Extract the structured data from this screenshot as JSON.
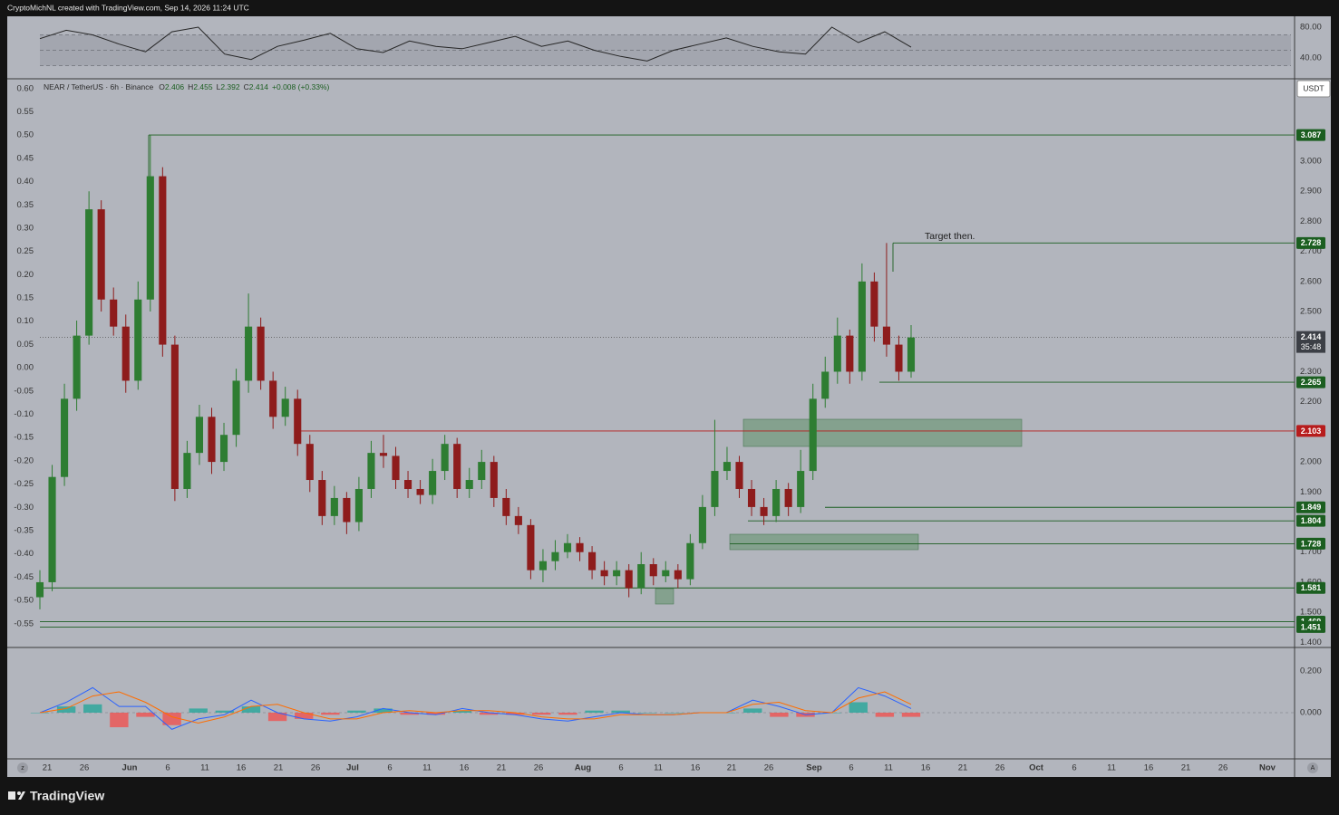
{
  "header": {
    "caption": "CryptoMichNL created with TradingView.com, Sep 14, 2026 11:24 UTC"
  },
  "footer": {
    "brand": "TradingView"
  },
  "chart_data": [
    {
      "type": "line",
      "series": [
        {
          "color": "#262626",
          "values": [
            65,
            76,
            70,
            58,
            48,
            74,
            80,
            45,
            38,
            55,
            63,
            72,
            52,
            47,
            62,
            55,
            52,
            60,
            68,
            55,
            62,
            50,
            42,
            36,
            50,
            58,
            66,
            55,
            48,
            45,
            80,
            60,
            74,
            54
          ]
        }
      ],
      "levels": [
        70,
        50,
        30
      ],
      "ylim": [
        14.1,
        94.1
      ],
      "yticks": [
        {
          "value": 80,
          "label": "80.00"
        },
        {
          "value": 40,
          "label": "40.00"
        }
      ]
    },
    {
      "type": "candlestick",
      "symbol": "NEAR / TetherUS · 6h · Binance",
      "ohlc_labels": [
        "O",
        "H",
        "L",
        "C"
      ],
      "ohlc": [
        2.406,
        2.455,
        2.392,
        2.414
      ],
      "change": "+0.008 (+0.33%)",
      "currency": "USDT",
      "up_color": "#2e7d32",
      "down_color": "#8e1c1c",
      "open": [
        1.55,
        1.6,
        1.95,
        2.21,
        2.42,
        2.84,
        2.54,
        2.45,
        2.27,
        2.54,
        2.95,
        2.39,
        1.91,
        2.03,
        2.15,
        2.0,
        2.09,
        2.27,
        2.45,
        2.27,
        2.15,
        2.21,
        2.06,
        1.94,
        1.82,
        1.88,
        1.8,
        1.91,
        2.03,
        2.02,
        1.94,
        1.91,
        1.89,
        1.97,
        2.06,
        1.91,
        1.94,
        2.0,
        1.88,
        1.82,
        1.79,
        1.64,
        1.67,
        1.7,
        1.73,
        1.7,
        1.64,
        1.62,
        1.64,
        1.58,
        1.66,
        1.62,
        1.64,
        1.61,
        1.73,
        1.85,
        1.97,
        2.0,
        1.91,
        1.85,
        1.82,
        1.91,
        1.85,
        1.97,
        2.21,
        2.3,
        2.42,
        2.3,
        2.6,
        2.45,
        2.39,
        2.3
      ],
      "high": [
        1.64,
        1.99,
        2.26,
        2.47,
        2.9,
        2.87,
        2.58,
        2.49,
        2.6,
        3.087,
        2.98,
        2.42,
        2.07,
        2.19,
        2.18,
        2.13,
        2.31,
        2.56,
        2.48,
        2.3,
        2.25,
        2.24,
        2.09,
        1.97,
        1.92,
        1.9,
        1.95,
        2.07,
        2.09,
        2.05,
        1.97,
        1.94,
        2.01,
        2.09,
        2.08,
        1.98,
        2.04,
        2.02,
        1.91,
        1.85,
        1.81,
        1.71,
        1.74,
        1.76,
        1.75,
        1.72,
        1.67,
        1.67,
        1.66,
        1.7,
        1.68,
        1.67,
        1.66,
        1.76,
        1.89,
        2.14,
        2.05,
        2.02,
        1.94,
        1.88,
        1.94,
        1.93,
        2.04,
        2.26,
        2.35,
        2.48,
        2.44,
        2.66,
        2.63,
        2.728,
        2.42,
        2.455
      ],
      "low": [
        1.51,
        1.57,
        1.92,
        2.17,
        2.39,
        2.5,
        2.42,
        2.23,
        2.24,
        2.5,
        2.35,
        1.87,
        1.88,
        1.99,
        1.96,
        1.97,
        2.05,
        2.23,
        2.24,
        2.11,
        2.12,
        2.02,
        1.9,
        1.79,
        1.79,
        1.76,
        1.77,
        1.88,
        1.98,
        1.91,
        1.88,
        1.86,
        1.86,
        1.94,
        1.88,
        1.88,
        1.91,
        1.85,
        1.79,
        1.76,
        1.61,
        1.6,
        1.64,
        1.68,
        1.67,
        1.61,
        1.59,
        1.59,
        1.55,
        1.56,
        1.59,
        1.6,
        1.58,
        1.59,
        1.71,
        1.82,
        1.94,
        1.88,
        1.82,
        1.79,
        1.8,
        1.82,
        1.83,
        1.94,
        2.18,
        2.26,
        2.26,
        2.27,
        2.4,
        2.35,
        2.27,
        2.28
      ],
      "close": [
        1.6,
        1.95,
        2.21,
        2.42,
        2.84,
        2.54,
        2.45,
        2.27,
        2.54,
        2.95,
        2.39,
        1.91,
        2.03,
        2.15,
        2.0,
        2.09,
        2.27,
        2.45,
        2.27,
        2.15,
        2.21,
        2.06,
        1.94,
        1.82,
        1.88,
        1.8,
        1.91,
        2.03,
        2.02,
        1.94,
        1.91,
        1.89,
        1.97,
        2.06,
        1.91,
        1.94,
        2.0,
        1.88,
        1.82,
        1.79,
        1.64,
        1.67,
        1.7,
        1.73,
        1.7,
        1.64,
        1.62,
        1.64,
        1.58,
        1.66,
        1.62,
        1.64,
        1.61,
        1.73,
        1.85,
        1.97,
        2.0,
        1.91,
        1.85,
        1.82,
        1.91,
        1.85,
        1.97,
        2.21,
        2.3,
        2.42,
        2.3,
        2.6,
        2.45,
        2.39,
        2.3,
        2.414
      ],
      "ylim": [
        1.383,
        3.271
      ],
      "yticks": [
        {
          "value": 3.0,
          "label": "3.000"
        },
        {
          "value": 2.9,
          "label": "2.900"
        },
        {
          "value": 2.8,
          "label": "2.800"
        },
        {
          "value": 2.7,
          "label": "2.700"
        },
        {
          "value": 2.6,
          "label": "2.600"
        },
        {
          "value": 2.5,
          "label": "2.500"
        },
        {
          "value": 2.3,
          "label": "2.300"
        },
        {
          "value": 2.2,
          "label": "2.200"
        },
        {
          "value": 2.0,
          "label": "2.000"
        },
        {
          "value": 1.9,
          "label": "1.900"
        },
        {
          "value": 1.7,
          "label": "1.700"
        },
        {
          "value": 1.6,
          "label": "1.600"
        },
        {
          "value": 1.5,
          "label": "1.500"
        },
        {
          "value": 1.4,
          "label": "1.400"
        }
      ],
      "y2lim": [
        -0.601,
        0.619
      ],
      "y2ticks": [
        {
          "value": 0.6,
          "label": "0.60"
        },
        0.55,
        {
          "value": 0.5,
          "label": "0.50"
        },
        0.45,
        {
          "value": 0.4,
          "label": "0.40"
        },
        0.35,
        {
          "value": 0.3,
          "label": "0.30"
        },
        0.25,
        {
          "value": 0.2,
          "label": "0.20"
        },
        0.15,
        {
          "value": 0.1,
          "label": "0.10"
        },
        0.05,
        {
          "value": 0,
          "label": "0.00"
        },
        -0.05,
        {
          "value": -0.1,
          "label": "-0.10"
        },
        -0.15,
        {
          "value": -0.2,
          "label": "-0.20"
        },
        -0.25,
        {
          "value": -0.3,
          "label": "-0.30"
        },
        -0.35,
        {
          "value": -0.4,
          "label": "-0.40"
        },
        -0.45,
        {
          "value": -0.5,
          "label": "-0.50"
        },
        -0.55
      ],
      "levels": [
        {
          "value": 3.087,
          "color": "#1b5e20"
        },
        {
          "value": 2.728,
          "color": "#1b5e20"
        },
        {
          "value": 2.265,
          "color": "#1b5e20"
        },
        {
          "value": 2.103,
          "color": "#b71c1c"
        },
        {
          "value": 1.849,
          "color": "#1b5e20"
        },
        {
          "value": 1.804,
          "color": "#1b5e20"
        },
        {
          "value": 1.728,
          "color": "#1b5e20"
        },
        {
          "value": 1.581,
          "color": "#1b5e20"
        },
        {
          "value": 1.469,
          "color": "#1b5e20"
        },
        {
          "value": 1.451,
          "color": "#1b5e20"
        }
      ],
      "last_price": 2.414,
      "countdown": "35:48",
      "annotation": "Target then.",
      "xtick_labels": [
        "21",
        "26",
        "Jun",
        "6",
        "11",
        "16",
        "21",
        "26",
        "Jul",
        "6",
        "11",
        "16",
        "21",
        "26",
        "Aug",
        "6",
        "11",
        "16",
        "21",
        "26",
        "Sep",
        "6",
        "11",
        "16",
        "21",
        "26",
        "Oct",
        "6",
        "11",
        "16",
        "21",
        "26",
        "Nov"
      ]
    },
    {
      "type": "macd",
      "series": [
        {
          "color": "#2962ff",
          "values": [
            0.0,
            0.05,
            0.12,
            0.03,
            0.03,
            -0.08,
            -0.03,
            -0.01,
            0.06,
            0.0,
            -0.03,
            -0.04,
            -0.02,
            0.02,
            0.0,
            -0.01,
            0.02,
            0.0,
            -0.01,
            -0.03,
            -0.04,
            -0.02,
            0.0,
            -0.01,
            -0.01,
            0.0,
            0.0,
            0.06,
            0.03,
            -0.01,
            0.0,
            0.12,
            0.08,
            0.02
          ]
        },
        {
          "color": "#ff6d00",
          "values": [
            0.0,
            0.02,
            0.08,
            0.1,
            0.05,
            -0.02,
            -0.05,
            -0.02,
            0.03,
            0.04,
            0.0,
            -0.03,
            -0.03,
            0.0,
            0.01,
            0.0,
            0.01,
            0.01,
            0.0,
            -0.02,
            -0.03,
            -0.03,
            -0.01,
            -0.01,
            -0.01,
            0.0,
            0.0,
            0.04,
            0.05,
            0.01,
            0.0,
            0.07,
            0.1,
            0.04
          ]
        }
      ],
      "histogram": {
        "up_color": "#26a69a",
        "down_color": "#ef5350",
        "values": [
          0,
          0.03,
          0.04,
          -0.07,
          -0.02,
          -0.06,
          0.02,
          0.01,
          0.03,
          -0.04,
          -0.03,
          -0.01,
          0.01,
          0.02,
          -0.01,
          -0.01,
          0.01,
          -0.01,
          -0.01,
          -0.01,
          -0.01,
          0.01,
          0.01,
          0,
          0,
          0,
          0,
          0.02,
          -0.02,
          -0.02,
          0,
          0.05,
          -0.02,
          -0.02
        ]
      },
      "ylim": [
        -0.222,
        0.309
      ],
      "yticks": [
        {
          "value": 0.2,
          "label": "0.200"
        },
        {
          "value": 0,
          "label": "0.000"
        }
      ]
    }
  ]
}
